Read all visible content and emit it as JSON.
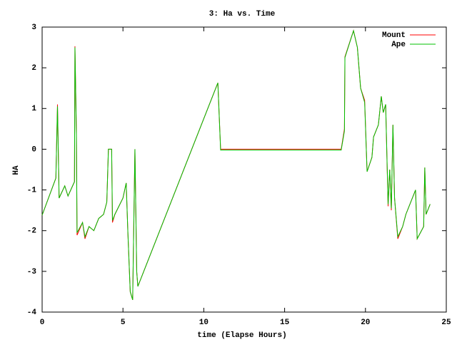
{
  "chart_data": {
    "type": "line",
    "title": "3: Ha vs. Time",
    "x_label": "time (Elapse Hours)",
    "y_label": "HA",
    "x": [
      0,
      0.85,
      0.95,
      1.05,
      1.4,
      1.6,
      2.0,
      2.03,
      2.12,
      2.16,
      2.5,
      2.65,
      2.9,
      3.2,
      3.5,
      3.8,
      4.0,
      4.1,
      4.3,
      4.35,
      4.5,
      5.0,
      5.2,
      5.3,
      5.45,
      5.6,
      5.74,
      5.85,
      5.92,
      10.87,
      11.04,
      18.5,
      18.7,
      18.73,
      19.26,
      19.5,
      19.7,
      19.95,
      20.1,
      20.4,
      20.5,
      20.8,
      20.98,
      21.1,
      21.25,
      21.4,
      21.5,
      21.6,
      21.7,
      21.8,
      22.0,
      22.3,
      22.5,
      23.1,
      23.2,
      23.6,
      23.67,
      23.75,
      24.0
    ],
    "series": [
      {
        "name": "Mount",
        "color": "#ff0000",
        "values": [
          -1.62,
          -0.71,
          1.1,
          -1.2,
          -0.9,
          -1.15,
          -0.8,
          2.53,
          0.4,
          -2.11,
          -1.8,
          -2.2,
          -1.9,
          -2.0,
          -1.7,
          -1.6,
          -1.3,
          0.0,
          0.0,
          -1.8,
          -1.6,
          -1.2,
          -0.83,
          -2.0,
          -3.5,
          -3.7,
          0.0,
          -3.0,
          -3.37,
          1.63,
          0.0,
          0.0,
          0.5,
          2.27,
          2.91,
          2.5,
          1.5,
          1.2,
          -0.55,
          -0.2,
          0.3,
          0.6,
          1.3,
          0.9,
          1.1,
          -1.4,
          -0.5,
          -1.5,
          0.6,
          -1.2,
          -2.2,
          -1.9,
          -1.6,
          -1.0,
          -2.2,
          -1.9,
          -0.45,
          -1.6,
          -1.35
        ]
      },
      {
        "name": "Ape",
        "color": "#00c000",
        "values": [
          -1.62,
          -0.71,
          1.05,
          -1.2,
          -0.9,
          -1.15,
          -0.8,
          2.5,
          0.35,
          -2.05,
          -1.8,
          -2.15,
          -1.9,
          -2.0,
          -1.7,
          -1.6,
          -1.3,
          0.0,
          0.0,
          -1.75,
          -1.6,
          -1.2,
          -0.83,
          -2.0,
          -3.5,
          -3.7,
          0.0,
          -3.0,
          -3.37,
          1.63,
          -0.02,
          -0.02,
          0.45,
          2.25,
          2.91,
          2.5,
          1.5,
          1.15,
          -0.55,
          -0.2,
          0.3,
          0.6,
          1.3,
          0.9,
          1.1,
          -1.35,
          -0.5,
          -1.45,
          0.6,
          -1.2,
          -2.15,
          -1.9,
          -1.6,
          -1.0,
          -2.2,
          -1.9,
          -0.45,
          -1.6,
          -1.35
        ]
      }
    ],
    "xlim": [
      0,
      25
    ],
    "xticks": [
      0,
      5,
      10,
      15,
      20,
      25
    ],
    "ylim": [
      -4,
      3
    ],
    "yticks": [
      -4,
      -3,
      -2,
      -1,
      0,
      1,
      2,
      3
    ],
    "legend": "top-right"
  }
}
